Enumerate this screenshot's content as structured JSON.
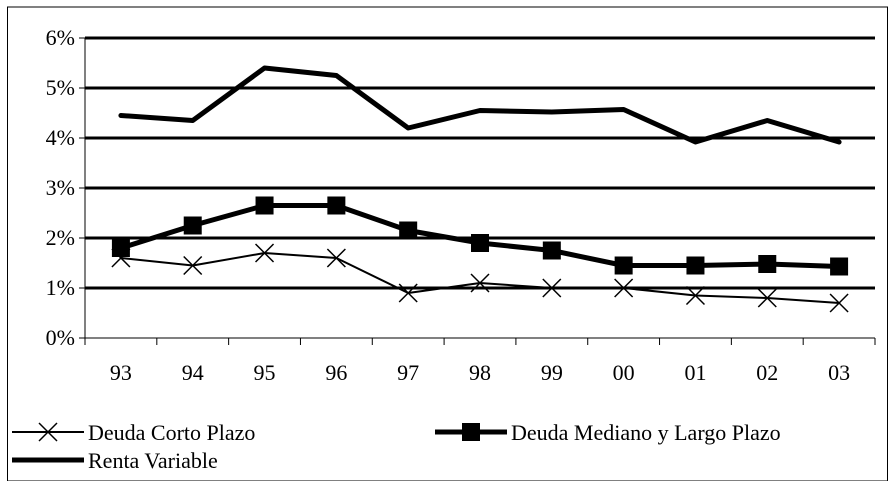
{
  "chart_data": {
    "type": "line",
    "categories": [
      "93",
      "94",
      "95",
      "96",
      "97",
      "98",
      "99",
      "00",
      "01",
      "02",
      "03"
    ],
    "ylim": [
      0,
      6
    ],
    "yticks": [
      {
        "value": 0,
        "label": "0%"
      },
      {
        "value": 1,
        "label": "1%"
      },
      {
        "value": 2,
        "label": "2%"
      },
      {
        "value": 3,
        "label": "3%"
      },
      {
        "value": 4,
        "label": "4%"
      },
      {
        "value": 5,
        "label": "5%"
      },
      {
        "value": 6,
        "label": "6%"
      }
    ],
    "grid": true,
    "legend_position": "bottom",
    "series": [
      {
        "name": "Deuda Corto Plazo",
        "marker": "x",
        "line": "thin",
        "color": "#000000",
        "values": [
          1.6,
          1.45,
          1.7,
          1.6,
          0.9,
          1.1,
          1.0,
          1.0,
          0.85,
          0.8,
          0.7
        ]
      },
      {
        "name": "Deuda Mediano y Largo Plazo",
        "marker": "square",
        "line": "thick",
        "color": "#000000",
        "values": [
          1.8,
          2.25,
          2.65,
          2.65,
          2.15,
          1.9,
          1.75,
          1.45,
          1.45,
          1.48,
          1.43
        ]
      },
      {
        "name": "Renta Variable",
        "marker": "none",
        "line": "thick",
        "color": "#000000",
        "values": [
          4.45,
          4.35,
          5.4,
          5.25,
          4.2,
          4.55,
          4.52,
          4.57,
          3.92,
          4.35,
          3.92
        ]
      }
    ]
  }
}
